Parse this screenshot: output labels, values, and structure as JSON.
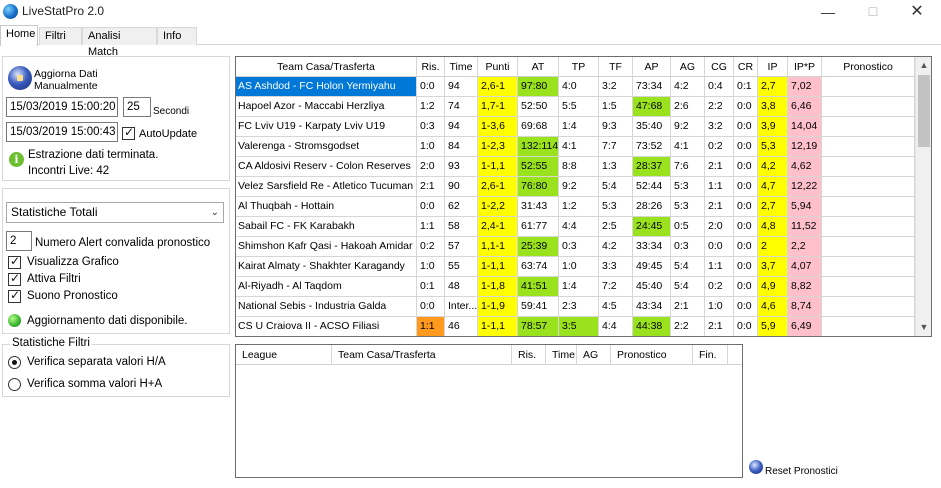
{
  "window": {
    "title": "LiveStatPro 2.0",
    "minimize": "—",
    "maximize": "☐",
    "close": "✕"
  },
  "tabs": [
    "Home",
    "Filtri",
    "Analisi Match",
    "Info"
  ],
  "left": {
    "update_btn_line1": "Aggiorna Dati",
    "update_btn_line2": "Manualmente",
    "datetime_from": "15/03/2019 15:00:20",
    "seconds_value": "25",
    "seconds_label": "Secondi",
    "datetime_to": "15/03/2019 15:00:43",
    "autoupdate_label": "AutoUpdate",
    "status_line1": "Estrazione dati terminata.",
    "status_line2": "Incontri Live: 42",
    "stats_dropdown": "Statistiche Totali",
    "alert_value": "2",
    "alert_label": "Numero Alert convalida pronostico",
    "chk_grafico": "Visualizza Grafico",
    "chk_filtri": "Attiva Filtri",
    "chk_suono": "Suono Pronostico",
    "data_available": "Aggiornamento dati disponibile.",
    "filters_group_title": "Statistiche Filtri",
    "radio_separata": "Verifica separata valori H/A",
    "radio_somma": "Verifica somma valori H+A"
  },
  "grid": {
    "headers": [
      "Team Casa/Trasferta",
      "Ris.",
      "Time",
      "Punti",
      "AT",
      "TP",
      "TF",
      "AP",
      "AG",
      "CG",
      "CR",
      "IP",
      "IP*P",
      "Pronostico"
    ],
    "rows": [
      [
        "AS Ashdod - FC Holon Yermiyahu",
        "0:0",
        "94",
        "2,6-1",
        "97:80",
        "4:0",
        "3:2",
        "73:34",
        "4:2",
        "0:4",
        "0:1",
        "2,7",
        "7,02",
        ""
      ],
      [
        "Hapoel Azor - Maccabi Herzliya",
        "1:2",
        "74",
        "1,7-1",
        "52:50",
        "5:5",
        "1:5",
        "47:68",
        "2:6",
        "2:2",
        "0:0",
        "3,8",
        "6,46",
        ""
      ],
      [
        "FC Lviv U19 - Karpaty Lviv U19",
        "0:3",
        "94",
        "1-3,6",
        "69:68",
        "1:4",
        "9:3",
        "35:40",
        "9:2",
        "3:2",
        "0:0",
        "3,9",
        "14,04",
        ""
      ],
      [
        "Valerenga - Stromsgodset",
        "1:0",
        "84",
        "1-2,3",
        "132:114",
        "4:1",
        "7:7",
        "73:52",
        "4:1",
        "0:2",
        "0:0",
        "5,3",
        "12,19",
        ""
      ],
      [
        "CA Aldosivi Reserv - Colon Reserves",
        "2:0",
        "93",
        "1-1,1",
        "52:55",
        "8:8",
        "1:3",
        "28:37",
        "7:6",
        "2:1",
        "0:0",
        "4,2",
        "4,62",
        ""
      ],
      [
        "Velez Sarsfield Re - Atletico Tucuman R",
        "2:1",
        "90",
        "2,6-1",
        "76:80",
        "9:2",
        "5:4",
        "52:44",
        "5:3",
        "1:1",
        "0:0",
        "4,7",
        "12,22",
        ""
      ],
      [
        "Al Thuqbah - Hottain",
        "0:0",
        "62",
        "1-2,2",
        "31:43",
        "1:2",
        "5:3",
        "28:26",
        "5:3",
        "2:1",
        "0:0",
        "2,7",
        "5,94",
        ""
      ],
      [
        "Sabail FC - FK Karabakh",
        "1:1",
        "58",
        "2,4-1",
        "61:77",
        "4:4",
        "2:5",
        "24:45",
        "0:5",
        "2:0",
        "0:0",
        "4,8",
        "11,52",
        ""
      ],
      [
        "Shimshon Kafr Qasi - Hakoah Amidar Ra",
        "0:2",
        "57",
        "1,1-1",
        "25:39",
        "0:3",
        "4:2",
        "33:34",
        "0:3",
        "0:0",
        "0:0",
        "2",
        "2,2",
        ""
      ],
      [
        "Kairat Almaty - Shakhter Karagandy",
        "1:0",
        "55",
        "1-1,1",
        "63:74",
        "1:0",
        "3:3",
        "49:45",
        "5:4",
        "1:1",
        "0:0",
        "3,7",
        "4,07",
        ""
      ],
      [
        "Al-Riyadh - Al Taqdom",
        "0:1",
        "48",
        "1-1,8",
        "41:51",
        "1:4",
        "7:2",
        "45:40",
        "5:4",
        "0:2",
        "0:0",
        "4,9",
        "8,82",
        ""
      ],
      [
        "National Sebis - Industria Galda",
        "0:0",
        "Inter...",
        "1-1,9",
        "59:41",
        "2:3",
        "4:5",
        "43:34",
        "2:1",
        "1:0",
        "0:0",
        "4,6",
        "8,74",
        ""
      ],
      [
        "CS U Craiova II - ACSO Filiasi",
        "1:1",
        "46",
        "1-1,1",
        "78:57",
        "3:5",
        "4:4",
        "44:38",
        "2:2",
        "2:1",
        "0:0",
        "5,9",
        "6,49",
        ""
      ]
    ],
    "highlights": {
      "AT_green_rows": [
        0,
        3,
        4,
        5,
        8,
        10,
        12
      ],
      "AP_green_rows": [
        1,
        4,
        7,
        12
      ],
      "TP_green_rows": [
        12
      ],
      "RIS_orange_rows": [
        12
      ]
    }
  },
  "lower_grid": {
    "headers": [
      "League",
      "Team Casa/Trasferta",
      "Ris.",
      "Time",
      "AG",
      "Pronostico",
      "Fin."
    ]
  },
  "reset_label": "Reset Pronostici",
  "colors": {
    "selected": "#0078d7",
    "yellow": "#ffff00",
    "green": "#9be21e",
    "pink": "#ffc0cb",
    "orange": "#ff9a1e"
  }
}
